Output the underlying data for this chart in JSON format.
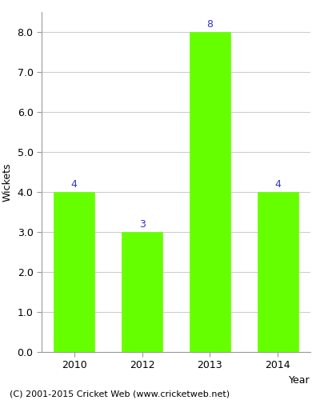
{
  "years": [
    "2010",
    "2012",
    "2013",
    "2014"
  ],
  "values": [
    4,
    3,
    8,
    4
  ],
  "bar_color": "#66ff00",
  "bar_edgecolor": "#66ff00",
  "label_color": "#3333cc",
  "label_fontsize": 9,
  "xlabel": "Year",
  "ylabel": "Wickets",
  "ylim": [
    0,
    8.5
  ],
  "yticks": [
    0.0,
    1.0,
    2.0,
    3.0,
    4.0,
    5.0,
    6.0,
    7.0,
    8.0
  ],
  "footnote": "(C) 2001-2015 Cricket Web (www.cricketweb.net)",
  "footnote_fontsize": 8,
  "xlabel_fontsize": 9,
  "ylabel_fontsize": 9,
  "tick_fontsize": 9,
  "background_color": "#ffffff",
  "grid_color": "#cccccc",
  "spine_color": "#999999"
}
